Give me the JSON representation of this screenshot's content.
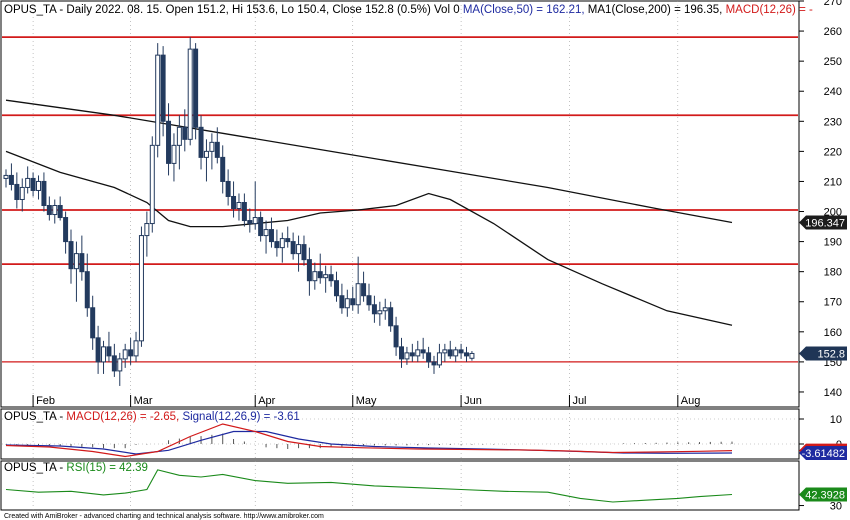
{
  "header": {
    "symbol": "OPUS_TA",
    "info": " - Daily 2022. 08. 15. Open 151.2, Hi 153.6, Lo 150.4, Close 152.8 (0.5%) Vol 0",
    "ma50": "MA(Close,50) = 162.21,",
    "ma200": "MA1(Close,200) = 196.35,",
    "macd_tag": "MACD(12,26) = -"
  },
  "macd_header": {
    "name": "OPUS_TA - ",
    "macd": "MACD(12,26) = -2.65,",
    "signal": "Signal(12,26,9) = -3.61"
  },
  "rsi_header": {
    "name": "OPUS_TA - ",
    "rsi": "RSI(15) = 42.39"
  },
  "colors": {
    "hline": "#d21a1a",
    "candle": "#233a5e",
    "ma": "#111111",
    "macd": "#d21a1a",
    "signal": "#1e2aa0",
    "rsi": "#1a8a1a",
    "grid": "#9a9a9a"
  },
  "chart_data": [
    {
      "type": "candlestick",
      "ylim": [
        135,
        270
      ],
      "yticks": [
        140,
        150,
        160,
        170,
        180,
        190,
        200,
        210,
        220,
        230,
        240,
        250,
        260,
        270
      ],
      "x_labels": [
        {
          "label": "Feb",
          "t": 5
        },
        {
          "label": "Mar",
          "t": 23
        },
        {
          "label": "Apr",
          "t": 46
        },
        {
          "label": "May",
          "t": 64
        },
        {
          "label": "Jun",
          "t": 84
        },
        {
          "label": "Jul",
          "t": 104
        },
        {
          "label": "Aug",
          "t": 124
        }
      ],
      "t_range": [
        0,
        146
      ],
      "horizontal_lines": [
        258,
        232,
        200.5,
        182.5,
        150
      ],
      "value_tags": [
        {
          "value": 196.347,
          "label": "196.347",
          "style": "dark"
        },
        {
          "value": 152.8,
          "label": "152.8",
          "style": "navy"
        }
      ],
      "ma200": [
        [
          0,
          237
        ],
        [
          20,
          232
        ],
        [
          40,
          226
        ],
        [
          60,
          220
        ],
        [
          80,
          214
        ],
        [
          100,
          208
        ],
        [
          120,
          201
        ],
        [
          134,
          196.35
        ]
      ],
      "ma50": [
        [
          0,
          220
        ],
        [
          10,
          213
        ],
        [
          20,
          208
        ],
        [
          26,
          203
        ],
        [
          30,
          197
        ],
        [
          34,
          195
        ],
        [
          40,
          195
        ],
        [
          52,
          197
        ],
        [
          58,
          199.5
        ],
        [
          65,
          200.5
        ],
        [
          72,
          202
        ],
        [
          78,
          206
        ],
        [
          82,
          204
        ],
        [
          90,
          196
        ],
        [
          100,
          184
        ],
        [
          110,
          176
        ],
        [
          122,
          167
        ],
        [
          134,
          162.21
        ]
      ],
      "candles": [
        [
          211,
          214,
          208,
          212
        ],
        [
          212,
          216,
          207,
          209
        ],
        [
          209,
          213,
          201,
          204
        ],
        [
          204,
          211,
          200,
          208
        ],
        [
          208,
          215,
          206,
          211
        ],
        [
          211,
          213,
          205,
          207
        ],
        [
          207,
          212,
          204,
          210
        ],
        [
          210,
          213,
          200,
          202
        ],
        [
          202,
          205,
          197,
          199
        ],
        [
          199,
          204,
          196,
          202
        ],
        [
          202,
          205,
          197,
          198
        ],
        [
          198,
          200,
          186,
          190
        ],
        [
          190,
          194,
          176,
          181
        ],
        [
          181,
          190,
          170,
          186
        ],
        [
          186,
          192,
          177,
          180
        ],
        [
          180,
          186,
          165,
          168
        ],
        [
          168,
          172,
          154,
          158
        ],
        [
          158,
          162,
          146,
          150
        ],
        [
          150,
          157,
          146,
          155
        ],
        [
          155,
          160,
          150,
          152
        ],
        [
          152,
          156,
          145,
          147
        ],
        [
          147,
          153,
          142,
          151
        ],
        [
          151,
          156,
          148,
          154
        ],
        [
          154,
          158,
          149,
          152
        ],
        [
          152,
          160,
          150,
          157
        ],
        [
          157,
          195,
          155,
          192
        ],
        [
          192,
          200,
          185,
          196
        ],
        [
          196,
          225,
          193,
          222
        ],
        [
          222,
          256,
          218,
          252
        ],
        [
          252,
          255,
          225,
          230
        ],
        [
          230,
          236,
          212,
          216
        ],
        [
          216,
          226,
          210,
          222
        ],
        [
          222,
          232,
          214,
          228
        ],
        [
          228,
          234,
          220,
          224
        ],
        [
          224,
          258,
          222,
          254
        ],
        [
          254,
          256,
          224,
          228
        ],
        [
          228,
          232,
          214,
          218
        ],
        [
          218,
          224,
          210,
          220
        ],
        [
          220,
          226,
          214,
          223
        ],
        [
          223,
          228,
          216,
          218
        ],
        [
          218,
          222,
          206,
          210
        ],
        [
          210,
          214,
          202,
          205
        ],
        [
          205,
          210,
          198,
          201
        ],
        [
          201,
          206,
          197,
          203
        ],
        [
          203,
          206,
          195,
          197
        ],
        [
          197,
          201,
          193,
          196
        ],
        [
          196,
          210,
          194,
          198
        ],
        [
          198,
          200,
          190,
          192
        ],
        [
          192,
          197,
          186,
          194
        ],
        [
          194,
          198,
          188,
          190
        ],
        [
          190,
          194,
          185,
          188
        ],
        [
          188,
          193,
          183,
          191
        ],
        [
          191,
          195,
          188,
          190
        ],
        [
          190,
          193,
          184,
          186
        ],
        [
          186,
          192,
          180,
          189
        ],
        [
          189,
          192,
          182,
          184
        ],
        [
          184,
          188,
          172,
          177
        ],
        [
          177,
          183,
          174,
          180
        ],
        [
          180,
          186,
          176,
          178
        ],
        [
          178,
          182,
          173,
          179
        ],
        [
          179,
          182,
          175,
          177
        ],
        [
          177,
          180,
          170,
          172
        ],
        [
          172,
          176,
          166,
          168
        ],
        [
          168,
          174,
          165,
          171
        ],
        [
          171,
          175,
          167,
          169
        ],
        [
          169,
          185,
          166,
          176
        ],
        [
          176,
          180,
          170,
          172
        ],
        [
          172,
          176,
          167,
          169
        ],
        [
          169,
          172,
          163,
          166
        ],
        [
          166,
          170,
          162,
          167
        ],
        [
          167,
          171,
          164,
          168
        ],
        [
          168,
          170,
          160,
          162
        ],
        [
          162,
          165,
          152,
          155
        ],
        [
          155,
          158,
          148,
          151
        ],
        [
          151,
          155,
          149,
          153
        ],
        [
          153,
          156,
          150,
          152
        ],
        [
          152,
          157,
          150,
          154
        ],
        [
          154,
          158,
          151,
          153
        ],
        [
          153,
          155,
          148,
          150
        ],
        [
          150,
          152,
          146,
          149
        ],
        [
          149,
          156,
          148,
          153
        ],
        [
          153,
          156,
          150,
          154
        ],
        [
          154,
          157,
          151,
          152
        ],
        [
          152,
          155,
          150,
          154
        ],
        [
          154,
          156,
          151,
          153
        ],
        [
          153,
          155,
          150,
          152
        ],
        [
          151.2,
          153.6,
          150.4,
          152.8
        ]
      ]
    },
    {
      "type": "line",
      "title": "MACD(12,26)",
      "ylim": [
        -6,
        14
      ],
      "yticks": [
        0,
        10
      ],
      "series": [
        {
          "name": "MACD(12,26)",
          "points": [
            [
              0,
              -0.6
            ],
            [
              8,
              -1.2
            ],
            [
              16,
              -3
            ],
            [
              22,
              -5
            ],
            [
              28,
              -3
            ],
            [
              34,
              3
            ],
            [
              40,
              8
            ],
            [
              46,
              5
            ],
            [
              52,
              1
            ],
            [
              58,
              -1
            ],
            [
              66,
              -1.5
            ],
            [
              76,
              -2
            ],
            [
              86,
              -2.2
            ],
            [
              96,
              -2.4
            ],
            [
              104,
              -2.8
            ],
            [
              112,
              -3.4
            ],
            [
              120,
              -3.2
            ],
            [
              128,
              -2.9
            ],
            [
              134,
              -2.65
            ]
          ]
        },
        {
          "name": "Signal(12,26,9)",
          "points": [
            [
              0,
              -0.4
            ],
            [
              10,
              -0.8
            ],
            [
              18,
              -2
            ],
            [
              24,
              -4
            ],
            [
              30,
              -2.5
            ],
            [
              36,
              1.5
            ],
            [
              42,
              5
            ],
            [
              48,
              5
            ],
            [
              54,
              2
            ],
            [
              60,
              0
            ],
            [
              68,
              -1
            ],
            [
              78,
              -1.6
            ],
            [
              88,
              -2
            ],
            [
              98,
              -2.5
            ],
            [
              106,
              -3
            ],
            [
              114,
              -3.6
            ],
            [
              122,
              -3.7
            ],
            [
              130,
              -3.65
            ],
            [
              134,
              -3.61
            ]
          ]
        }
      ],
      "value_tags": [
        {
          "value": -2.65,
          "label": "-2.65066",
          "style": "red"
        },
        {
          "value": -3.61,
          "label": "-3.61482",
          "style": "blue"
        }
      ]
    },
    {
      "type": "line",
      "title": "RSI(15)",
      "ylim": [
        25,
        80
      ],
      "yticks": [
        30
      ],
      "series": [
        {
          "name": "RSI(15)",
          "points": [
            [
              0,
              48
            ],
            [
              6,
              45
            ],
            [
              12,
              46
            ],
            [
              18,
              42
            ],
            [
              22,
              44
            ],
            [
              26,
              48
            ],
            [
              28,
              70
            ],
            [
              32,
              64
            ],
            [
              36,
              62
            ],
            [
              40,
              65
            ],
            [
              46,
              58
            ],
            [
              52,
              55
            ],
            [
              60,
              56
            ],
            [
              68,
              52
            ],
            [
              76,
              50
            ],
            [
              84,
              48
            ],
            [
              92,
              46
            ],
            [
              100,
              45
            ],
            [
              106,
              38
            ],
            [
              112,
              34
            ],
            [
              118,
              36
            ],
            [
              124,
              38
            ],
            [
              128,
              40
            ],
            [
              134,
              42.39
            ]
          ]
        }
      ],
      "value_tags": [
        {
          "value": 42.39,
          "label": "42.3928",
          "style": "green"
        }
      ]
    }
  ],
  "footer": {
    "credit": "Created with AmiBroker - advanced charting and technical analysis software. http://www.amibroker.com"
  }
}
